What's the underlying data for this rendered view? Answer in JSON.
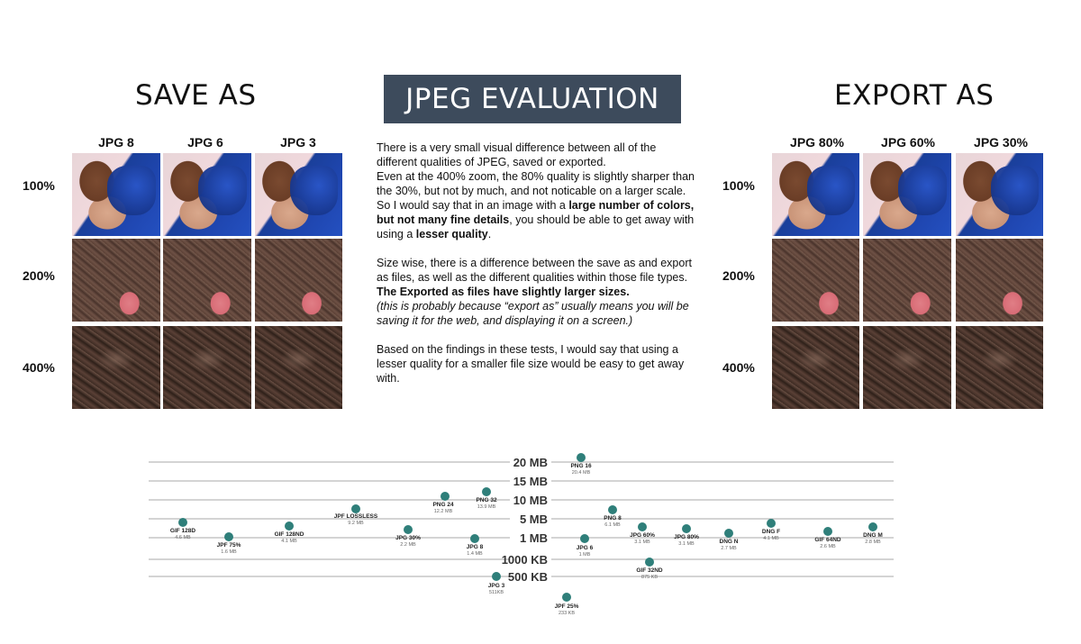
{
  "save_section": {
    "title": "SAVE AS",
    "columns": [
      "JPG 8",
      "JPG 6",
      "JPG 3"
    ],
    "rows": [
      "100%",
      "200%",
      "400%"
    ]
  },
  "main_title": "JPEG EVALUATION",
  "export_section": {
    "title": "EXPORT AS",
    "columns": [
      "JPG 80%",
      "JPG 60%",
      "JPG 30%"
    ],
    "rows": [
      "100%",
      "200%",
      "400%"
    ]
  },
  "description": {
    "p1_line1": "There is a very small visual difference between all of the different qualities of JPEG, saved or exported.",
    "p1_line2": "Even at the 400% zoom, the 80% quality is slightly sharper than the 30%, but not by much, and not noticable on a larger scale.",
    "p1_line3_pre": "So I would say that in an image with a ",
    "p1_line3_bold": "large number of colors, but not many fine details",
    "p1_line3_mid": ", you should be able to get away with using a ",
    "p1_line3_bold2": "lesser quality",
    "p1_line3_end": ".",
    "p2_line1": "Size wise, there is a difference between the save as and export as files, as well as the different qualities within those file types.",
    "p2_bold": "The Exported as files have slightly larger sizes.",
    "p2_italic": "(this is probably because “export as” usually means you will be saving it for the web, and displaying it on a screen.)",
    "p3": "Based on the findings in these tests, I would say that using a lesser quality for a smaller file size would be easy to get away with."
  },
  "chart_data": {
    "type": "scatter",
    "title": "",
    "xlabel": "",
    "ylabel": "",
    "y_tick_labels": [
      "20 MB",
      "15 MB",
      "10 MB",
      "5 MB",
      "1 MB",
      "1000 KB",
      "500 KB"
    ],
    "grid": true,
    "marker_color": "#2f7f7a",
    "points": [
      {
        "name": "GIF 128D",
        "size": "4.6 MB",
        "value_mb": 4.6
      },
      {
        "name": "JPF 75%",
        "size": "1.6 MB",
        "value_mb": 1.6
      },
      {
        "name": "GIF 128ND",
        "size": "4.1 MB",
        "value_mb": 4.1
      },
      {
        "name": "JPF LOSSLESS",
        "size": "9.2 MB",
        "value_mb": 9.2
      },
      {
        "name": "JPG 30%",
        "size": "2.2 MB",
        "value_mb": 2.2
      },
      {
        "name": "PNG 24",
        "size": "12.2 MB",
        "value_mb": 12.2
      },
      {
        "name": "JPG 8",
        "size": "1.4 MB",
        "value_mb": 1.4
      },
      {
        "name": "PNG 32",
        "size": "13.9 MB",
        "value_mb": 13.9
      },
      {
        "name": "JPG 3",
        "size": "511KB",
        "value_mb": 0.511
      },
      {
        "name": "PNG 16",
        "size": "20.4 MB",
        "value_mb": 20.4
      },
      {
        "name": "JPF 25%",
        "size": "233 KB",
        "value_mb": 0.233
      },
      {
        "name": "JPG 6",
        "size": "1 MB",
        "value_mb": 1.0
      },
      {
        "name": "PNG 8",
        "size": "6.1 MB",
        "value_mb": 6.1
      },
      {
        "name": "JPG 60%",
        "size": "3.1 MB",
        "value_mb": 3.1
      },
      {
        "name": "GIF 32ND",
        "size": "875 KB",
        "value_mb": 0.875
      },
      {
        "name": "JPG 80%",
        "size": "3.1 MB",
        "value_mb": 3.1
      },
      {
        "name": "DNG N",
        "size": "2.7 MB",
        "value_mb": 2.7
      },
      {
        "name": "DNG F",
        "size": "4.1 MB",
        "value_mb": 4.1
      },
      {
        "name": "GIF 64ND",
        "size": "2.6 MB",
        "value_mb": 2.6
      },
      {
        "name": "DNG M",
        "size": "2.8 MB",
        "value_mb": 2.8
      }
    ]
  }
}
